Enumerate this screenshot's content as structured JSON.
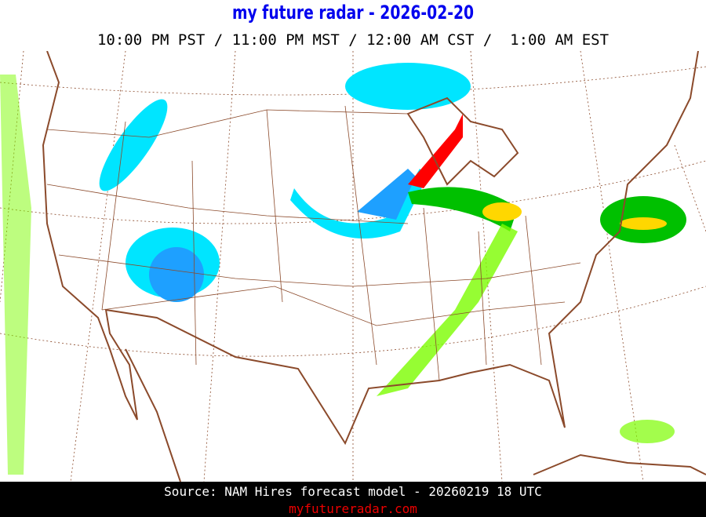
{
  "header": {
    "title": "my future radar - 2026-02-20",
    "times": "10:00 PM PST / 11:00 PM MST / 12:00 AM CST /  1:00 AM EST"
  },
  "map": {
    "border_color": "#8b4a2b",
    "precip_colors": {
      "snow_light": "#00e5ff",
      "snow_heavy": "#1ea0ff",
      "rain_light": "#7cfc00",
      "rain_moderate": "#00c000",
      "rain_heavy": "#ffd700",
      "mix": "#ff0000"
    }
  },
  "footer": {
    "source": "Source: NAM Hires forecast model - 20260219 18 UTC",
    "site": "myfutureradar.com"
  }
}
